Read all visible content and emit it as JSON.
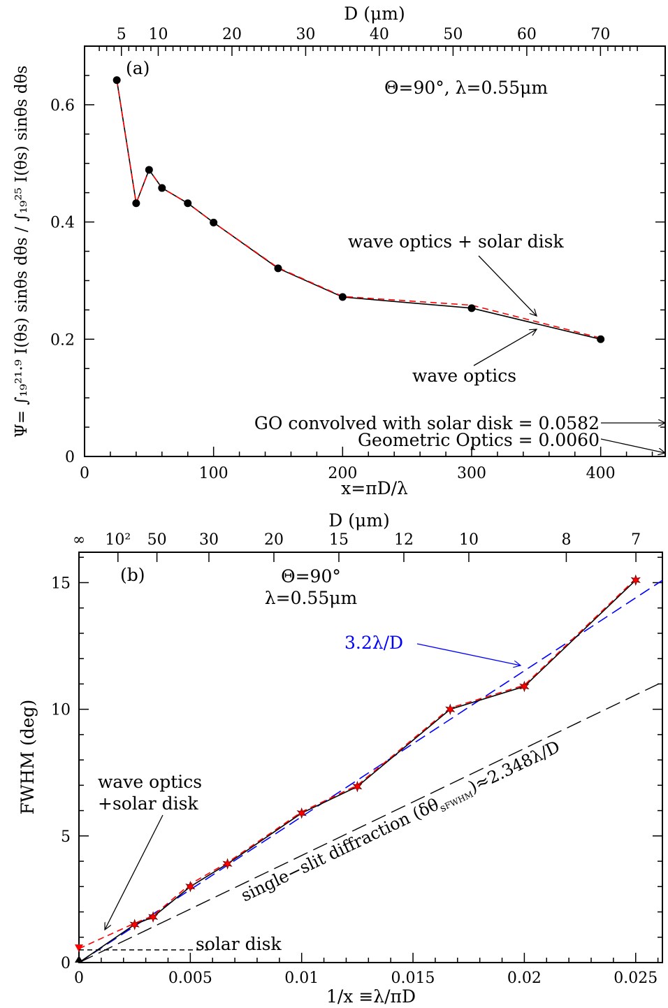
{
  "chart_data": [
    {
      "id": "a",
      "type": "line",
      "panel_label": "(a)",
      "annotation": "Θ=90°,  λ=0.55μm",
      "xlabel": "x=πD/λ",
      "top_axis_label": "D (μm)",
      "ylabel": "Ψ= ∫₁₉²¹·⁹ I(θs) sinθs dθs / ∫₁₉²⁵ I(θs) sinθs dθs",
      "xlim": [
        0,
        450
      ],
      "ylim": [
        0,
        0.7
      ],
      "x_ticks": [
        0,
        100,
        200,
        300,
        400
      ],
      "x_tick_labels": [
        "0",
        "100",
        "200",
        "300",
        "400"
      ],
      "y_ticks": [
        0,
        0.2,
        0.4,
        0.6
      ],
      "y_tick_labels": [
        "0",
        "0.2",
        "0.4",
        "0.6"
      ],
      "top_ticks_D": [
        5,
        10,
        20,
        30,
        40,
        50,
        60,
        70
      ],
      "top_tick_labels": [
        "5",
        "10",
        "20",
        "30",
        "40",
        "50",
        "60",
        "70"
      ],
      "series": [
        {
          "name": "wave optics",
          "color": "#000000",
          "marker": "circle",
          "x": [
            25,
            40,
            50,
            60,
            80,
            100,
            150,
            200,
            300,
            400
          ],
          "y": [
            0.642,
            0.432,
            0.489,
            0.458,
            0.432,
            0.399,
            0.321,
            0.272,
            0.253,
            0.2
          ]
        },
        {
          "name": "wave optics + solar disk",
          "color": "#ff0000",
          "dashed": true,
          "x": [
            25,
            40,
            50,
            60,
            80,
            100,
            150,
            200,
            300,
            400
          ],
          "y": [
            0.642,
            0.432,
            0.489,
            0.458,
            0.432,
            0.399,
            0.322,
            0.273,
            0.258,
            0.202
          ]
        }
      ],
      "labels": {
        "wave_solar": "wave optics + solar disk",
        "wave": "wave optics",
        "go_conv": "GO convolved with solar disk  =  0.0582",
        "go": "Geometric  Optics  =  0.0060"
      },
      "reference_values": {
        "go_conv": 0.0582,
        "go": 0.006
      }
    },
    {
      "id": "b",
      "type": "line",
      "panel_label": "(b)",
      "annotation_line1": "Θ=90°",
      "annotation_line2": "λ=0.55μm",
      "xlabel": "1/x  ≡λ/πD",
      "top_axis_label": "D (μm)",
      "ylabel": "FWHM  (deg)",
      "xlim": [
        0,
        0.0262
      ],
      "ylim": [
        0,
        16.2
      ],
      "x_ticks": [
        0,
        0.005,
        0.01,
        0.015,
        0.02,
        0.025
      ],
      "x_tick_labels": [
        "0",
        "0.005",
        "0.01",
        "0.015",
        "0.02",
        "0.025"
      ],
      "y_ticks": [
        0,
        5,
        10,
        15
      ],
      "y_tick_labels": [
        "0",
        "5",
        "10",
        "15"
      ],
      "top_ticks_D": [
        "inf",
        100,
        50,
        30,
        20,
        15,
        12,
        10,
        8,
        7
      ],
      "top_tick_labels": [
        "∞",
        "10²",
        "50",
        "30",
        "20",
        "15",
        "12",
        "10",
        "8",
        "7"
      ],
      "series": [
        {
          "name": "wave optics",
          "color": "#000000",
          "marker": "star",
          "x": [
            0,
            0.0025,
            0.00333,
            0.005,
            0.00667,
            0.01,
            0.0125,
            0.01667,
            0.02,
            0.025
          ],
          "y": [
            0,
            1.5,
            1.8,
            3.0,
            3.9,
            5.9,
            6.95,
            10.0,
            10.9,
            15.1
          ]
        },
        {
          "name": "wave optics +solar disk",
          "color": "#ff0000",
          "dashed": true,
          "x": [
            0,
            0.0025,
            0.00333,
            0.005,
            0.00667,
            0.01,
            0.0125,
            0.01667,
            0.02,
            0.025
          ],
          "y": [
            0.55,
            1.55,
            1.85,
            3.1,
            3.95,
            5.95,
            7.0,
            10.05,
            10.95,
            15.15
          ]
        }
      ],
      "fits": {
        "fit_32": {
          "slope_deg": 3.2,
          "color": "#0000ff",
          "label": "3.2λ/D"
        },
        "single_slit": {
          "slope_deg": 2.348,
          "label": "single−slit diffraction (δθ",
          "sub": "s",
          "subsub": "FWHM",
          "label_tail": ")≈2.348λ/D"
        }
      },
      "solar_disk": {
        "value": 0.5,
        "label": "solar  disk"
      },
      "wave_solar_label_1": "wave optics",
      "wave_solar_label_2": "+solar disk"
    }
  ]
}
